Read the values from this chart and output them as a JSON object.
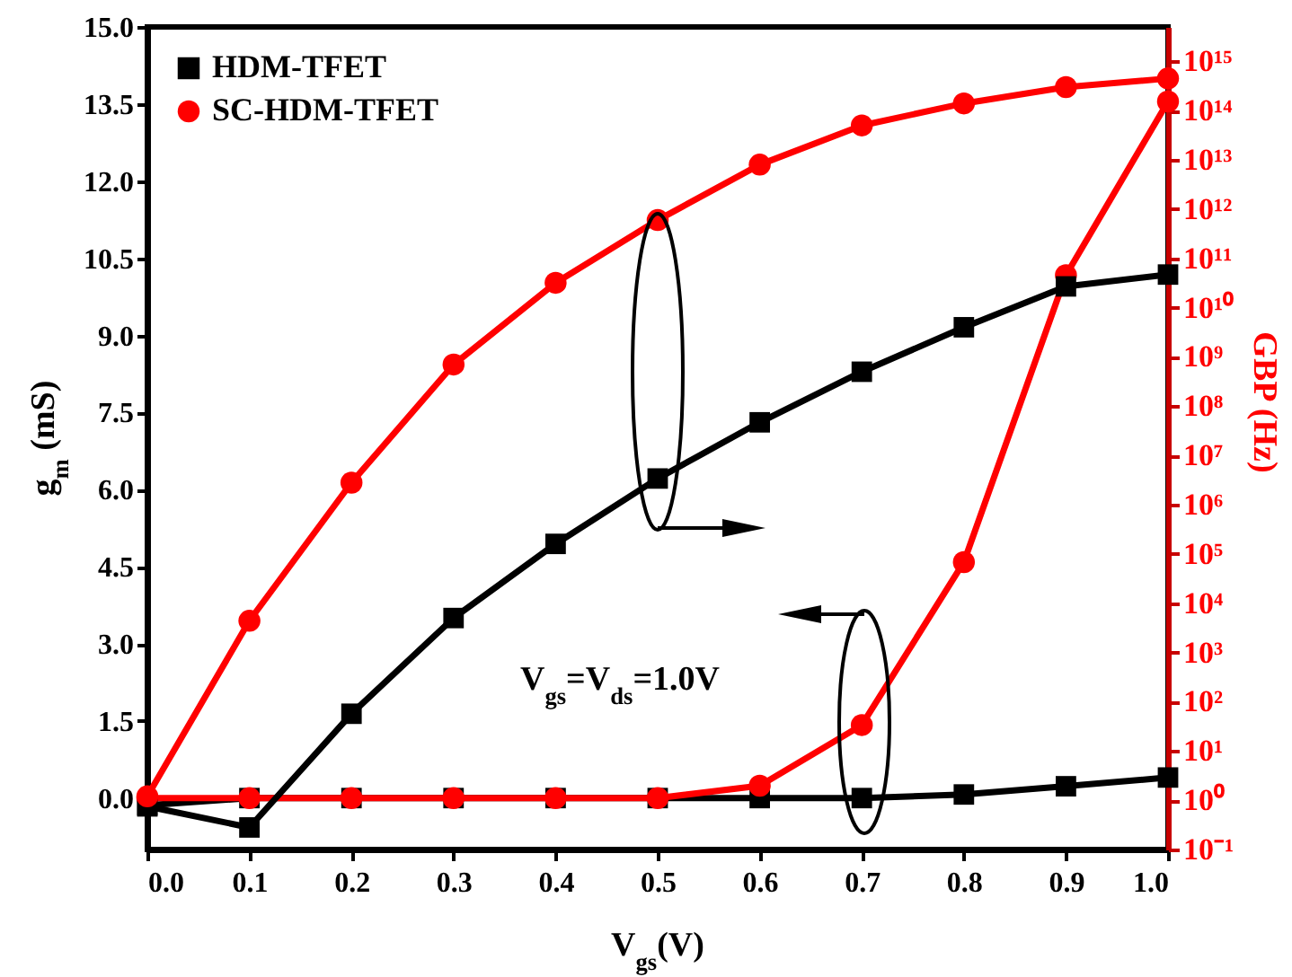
{
  "chart_data": {
    "type": "line",
    "xlabel": "V$_{gs}$(V)",
    "ylabel": "g$_{m}$ (mS)",
    "y2label": "GBP (Hz)",
    "annotations": [
      "V$_{gs}$=V$_{ds}$=1.0V"
    ],
    "x": [
      0,
      0.1,
      0.2,
      0.3,
      0.4,
      0.5,
      0.6,
      0.7,
      0.8,
      0.9,
      1.0
    ],
    "series": [
      {
        "name": "HDM-TFET",
        "color": "#000000",
        "marker": "square",
        "values": [
          -0.14,
          0,
          0,
          0,
          0,
          0,
          0,
          0,
          0.07,
          0.23,
          0.4
        ]
      },
      {
        "name": "SC-HDM-TFET",
        "color": "#ff0000",
        "marker": "circle",
        "values": [
          0,
          0,
          0,
          0,
          0,
          0,
          0.24,
          1.42,
          4.59,
          10.17,
          13.55
        ]
      },
      {
        "color": "#000000",
        "marker": "square",
        "axis": "y2",
        "values": [
          0.75,
          0.28,
          57,
          5000,
          160000,
          3400000,
          47000000,
          500000000,
          4000000000,
          27000000000,
          47000000000
        ]
      },
      {
        "color": "#ff0000",
        "marker": "circle",
        "axis": "y2",
        "values": [
          1.2,
          4400,
          2800000,
          700000000,
          32000000000,
          600000000000,
          8000000000000,
          50000000000000,
          140000000000000,
          300000000000000,
          450000000000000
        ]
      }
    ],
    "xlim": [
      0,
      1.0
    ],
    "xticks": [
      {
        "value": 0,
        "label": "0.0"
      },
      0.1,
      0.2,
      0.3,
      0.4,
      0.5,
      0.6,
      0.7,
      0.8,
      0.9,
      {
        "value": 1.0,
        "label": "1.0"
      }
    ],
    "ylim": [
      -1,
      15
    ],
    "yticks": [
      {
        "value": 0,
        "label": "0.0"
      },
      1.5,
      {
        "value": 3,
        "label": "3.0"
      },
      4.5,
      {
        "value": 6,
        "label": "6.0"
      },
      7.5,
      {
        "value": 9,
        "label": "9.0"
      },
      10.5,
      {
        "value": 12,
        "label": "12.0"
      },
      13.5,
      {
        "value": 15,
        "label": "15.0"
      }
    ],
    "y2lim": [
      0.1,
      5000000000000000.0
    ],
    "y2ticks": [
      {
        "value": 0.1,
        "label": "10⁻¹"
      },
      {
        "value": 1,
        "label": "10⁰"
      },
      {
        "value": 10,
        "label": "10¹"
      },
      {
        "value": 100,
        "label": "10²"
      },
      {
        "value": 1000,
        "label": "10³"
      },
      {
        "value": 10000,
        "label": "10⁴"
      },
      {
        "value": 100000,
        "label": "10⁵"
      },
      {
        "value": 1000000,
        "label": "10⁶"
      },
      {
        "value": 10000000,
        "label": "10⁷"
      },
      {
        "value": 100000000,
        "label": "10⁸"
      },
      {
        "value": 1000000000,
        "label": "10⁹"
      },
      {
        "value": 10000000000,
        "label": "10¹⁰"
      },
      {
        "value": 100000000000,
        "label": "10¹¹"
      },
      {
        "value": 1000000000000,
        "label": "10¹²"
      },
      {
        "value": 10000000000000,
        "label": "10¹³"
      },
      {
        "value": 100000000000000,
        "label": "10¹⁴"
      },
      {
        "value": 1000000000000000,
        "label": "10¹⁵"
      }
    ],
    "log": "y2",
    "grid": false,
    "legend": "top left",
    "line_style": "solid"
  }
}
